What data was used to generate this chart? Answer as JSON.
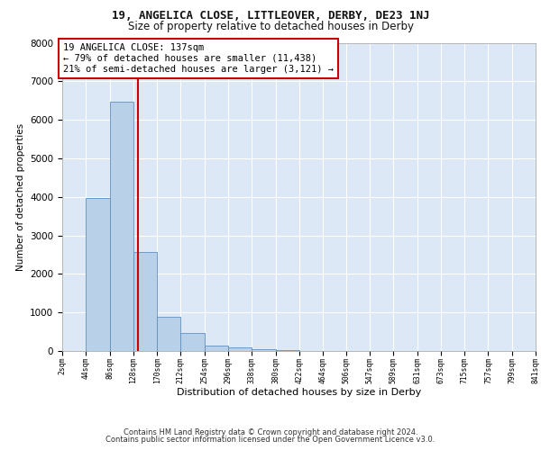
{
  "title_line1": "19, ANGELICA CLOSE, LITTLEOVER, DERBY, DE23 1NJ",
  "title_line2": "Size of property relative to detached houses in Derby",
  "xlabel": "Distribution of detached houses by size in Derby",
  "ylabel": "Number of detached properties",
  "bar_edges": [
    2,
    44,
    86,
    128,
    170,
    212,
    254,
    296,
    338,
    380,
    422,
    464,
    506,
    547,
    589,
    631,
    673,
    715,
    757,
    799,
    841
  ],
  "bar_heights": [
    0,
    3980,
    6480,
    2580,
    890,
    470,
    140,
    95,
    40,
    15,
    8,
    4,
    4,
    0,
    0,
    0,
    0,
    0,
    0,
    0
  ],
  "bar_color": "#b8d0e8",
  "bar_edgecolor": "#6090c0",
  "vline_x": 137,
  "vline_color": "#cc0000",
  "annotation_text": "19 ANGELICA CLOSE: 137sqm\n← 79% of detached houses are smaller (11,438)\n21% of semi-detached houses are larger (3,121) →",
  "annotation_box_color": "#cc0000",
  "ylim": [
    0,
    8000
  ],
  "yticks": [
    0,
    1000,
    2000,
    3000,
    4000,
    5000,
    6000,
    7000,
    8000
  ],
  "background_color": "#dce8f5",
  "grid_color": "#ffffff",
  "footer_line1": "Contains HM Land Registry data © Crown copyright and database right 2024.",
  "footer_line2": "Contains public sector information licensed under the Open Government Licence v3.0."
}
